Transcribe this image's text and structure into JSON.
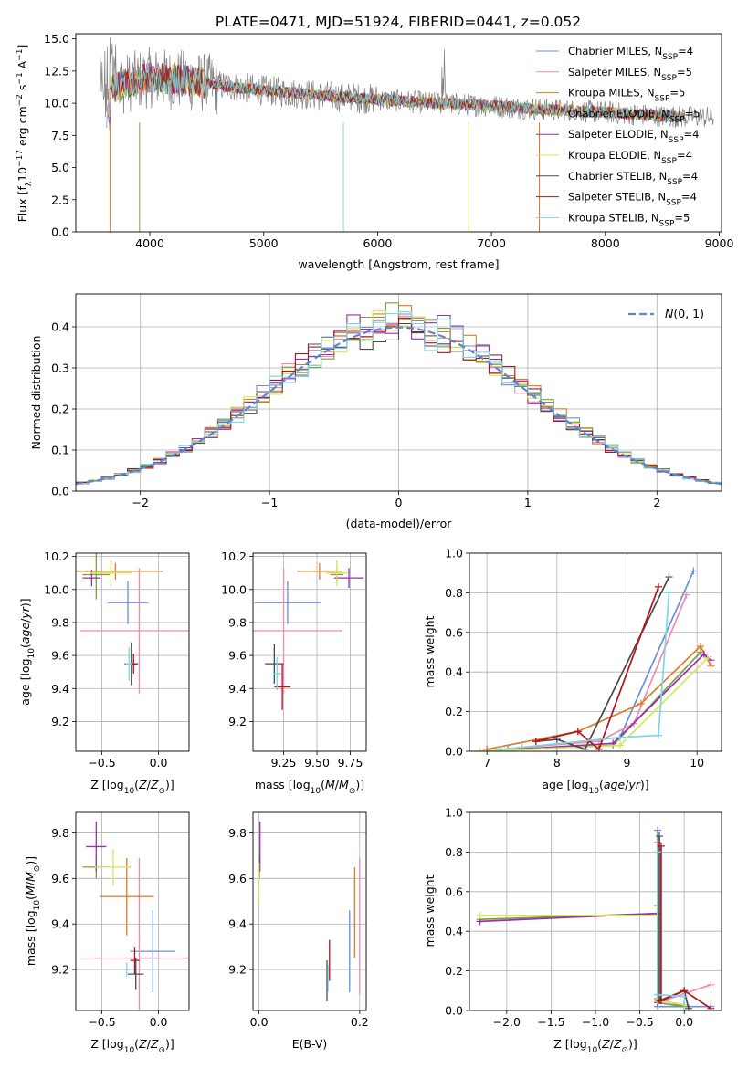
{
  "figure": {
    "title": "PLATE=0471, MJD=51924, FIBERID=0441, z=0.052"
  },
  "colors": {
    "Chabrier MILES": "#6a8fd8",
    "Salpeter MILES": "#f08cac",
    "Kroupa MILES": "#e07b28",
    "Chabrier ELODIE": "#7aa03c",
    "Salpeter ELODIE": "#9a2fb0",
    "Kroupa ELODIE": "#d4e65a",
    "Chabrier STELIB": "#4a4a4a",
    "Salpeter STELIB": "#b0141e",
    "Kroupa STELIB": "#7dd6df",
    "data": "#808080"
  },
  "chart_data": [
    {
      "id": "spectrum",
      "type": "line",
      "title": "PLATE=0471, MJD=51924, FIBERID=0441, z=0.052",
      "xlabel": "wavelength [Angstrom, rest frame]",
      "ylabel": "Flux [f_λ 10^-17 erg cm^-2 s^-1 A^-1]",
      "xlim": [
        3350,
        9020
      ],
      "ylim": [
        0,
        15.4
      ],
      "xticks": [
        4000,
        5000,
        6000,
        7000,
        8000,
        9000
      ],
      "yticks": [
        0.0,
        2.5,
        5.0,
        7.5,
        10.0,
        12.5,
        15.0
      ],
      "legend_position": "top-right",
      "series": [
        {
          "name": "Chabrier MILES",
          "label": "Chabrier MILES, N_SSP=4"
        },
        {
          "name": "Salpeter MILES",
          "label": "Salpeter MILES, N_SSP=5"
        },
        {
          "name": "Kroupa MILES",
          "label": "Kroupa MILES, N_SSP=5"
        },
        {
          "name": "Chabrier ELODIE",
          "label": "Chabrier ELODIE, N_SSP=5"
        },
        {
          "name": "Salpeter ELODIE",
          "label": "Salpeter ELODIE, N_SSP=4"
        },
        {
          "name": "Kroupa ELODIE",
          "label": "Kroupa ELODIE, N_SSP=4"
        },
        {
          "name": "Chabrier STELIB",
          "label": "Chabrier STELIB, N_SSP=4"
        },
        {
          "name": "Salpeter STELIB",
          "label": "Salpeter STELIB, N_SSP=4"
        },
        {
          "name": "Kroupa STELIB",
          "label": "Kroupa STELIB, N_SSP=5"
        }
      ],
      "continuum": {
        "x": [
          3650,
          3800,
          4000,
          4300,
          4600,
          5000,
          5500,
          6000,
          6500,
          7000,
          7500,
          8000,
          8500,
          8900
        ],
        "y": [
          11.0,
          11.6,
          12.0,
          11.8,
          11.4,
          11.0,
          10.6,
          10.3,
          10.0,
          9.8,
          9.5,
          9.3,
          9.0,
          8.9
        ]
      }
    },
    {
      "id": "residuals",
      "type": "line",
      "xlabel": "(data-model)/error",
      "ylabel": "Normed distribution",
      "xlim": [
        -2.5,
        2.5
      ],
      "ylim": [
        0,
        0.48
      ],
      "xticks": [
        -2,
        -1,
        0,
        1,
        2
      ],
      "yticks": [
        0.0,
        0.1,
        0.2,
        0.3,
        0.4
      ],
      "legend_position": "top-right",
      "legend_label": "N(0,1)",
      "bin_width": 0.1,
      "bin_start": -2.5
    },
    {
      "id": "age-vs-Z",
      "type": "scatter",
      "xlabel": "Z [log10(Z/Z_sun)]",
      "ylabel": "age [log10(age/yr)]",
      "xlim": [
        -0.73,
        0.27
      ],
      "ylim": [
        9.02,
        10.22
      ],
      "xticks": [
        -0.5,
        0.0
      ],
      "yticks": [
        9.2,
        9.4,
        9.6,
        9.8,
        10.0,
        10.2
      ],
      "points": [
        {
          "name": "Chabrier MILES",
          "x": -0.27,
          "xerr": 0.18,
          "y": 9.92,
          "yerr": 0.13
        },
        {
          "name": "Salpeter MILES",
          "x": -0.17,
          "xerr": 0.52,
          "y": 9.75,
          "yerr": 0.38
        },
        {
          "name": "Kroupa MILES",
          "x": -0.38,
          "xerr": 0.42,
          "y": 10.11,
          "yerr": 0.05
        },
        {
          "name": "Chabrier ELODIE",
          "x": -0.55,
          "xerr": 0.12,
          "y": 10.09,
          "yerr": 0.15
        },
        {
          "name": "Salpeter ELODIE",
          "x": -0.59,
          "xerr": 0.08,
          "y": 10.07,
          "yerr": 0.05
        },
        {
          "name": "Kroupa ELODIE",
          "x": -0.42,
          "xerr": 0.18,
          "y": 10.1,
          "yerr": 0.08
        },
        {
          "name": "Chabrier STELIB",
          "x": -0.24,
          "xerr": 0.06,
          "y": 9.55,
          "yerr": 0.13
        },
        {
          "name": "Salpeter STELIB",
          "x": -0.22,
          "xerr": 0.03,
          "y": 9.55,
          "yerr": 0.06
        },
        {
          "name": "Kroupa STELIB",
          "x": -0.26,
          "xerr": 0.03,
          "y": 9.55,
          "yerr": 0.1
        }
      ]
    },
    {
      "id": "age-vs-mass",
      "type": "scatter",
      "xlabel": "mass [log10(M/M_sun)]",
      "xlim": [
        9.02,
        9.87
      ],
      "ylim": [
        9.02,
        10.22
      ],
      "xticks": [
        9.25,
        9.5,
        9.75
      ],
      "yticks": [
        9.2,
        9.4,
        9.6,
        9.8,
        10.0,
        10.2
      ],
      "points": [
        {
          "name": "Chabrier MILES",
          "x": 9.28,
          "xerr": 0.25,
          "y": 9.92,
          "yerr": 0.13
        },
        {
          "name": "Salpeter MILES",
          "x": 9.25,
          "xerr": 0.44,
          "y": 9.75,
          "yerr": 0.38
        },
        {
          "name": "Kroupa MILES",
          "x": 9.52,
          "xerr": 0.17,
          "y": 10.11,
          "yerr": 0.05
        },
        {
          "name": "Chabrier ELODIE",
          "x": 9.65,
          "xerr": 0.05,
          "y": 10.09,
          "yerr": 0.04
        },
        {
          "name": "Salpeter ELODIE",
          "x": 9.74,
          "xerr": 0.11,
          "y": 10.07,
          "yerr": 0.06
        },
        {
          "name": "Kroupa ELODIE",
          "x": 9.65,
          "xerr": 0.08,
          "y": 10.1,
          "yerr": 0.08
        },
        {
          "name": "Chabrier STELIB",
          "x": 9.18,
          "xerr": 0.07,
          "y": 9.55,
          "yerr": 0.12
        },
        {
          "name": "Salpeter STELIB",
          "x": 9.24,
          "xerr": 0.06,
          "y": 9.41,
          "yerr": 0.14
        },
        {
          "name": "Kroupa STELIB",
          "x": 9.2,
          "xerr": 0.03,
          "y": 9.49,
          "yerr": 0.1
        }
      ]
    },
    {
      "id": "massweight-vs-age",
      "type": "line",
      "xlabel": "age [log10(age/yr)]",
      "ylabel": "mass weight",
      "xlim": [
        6.75,
        10.35
      ],
      "ylim": [
        0,
        1.0
      ],
      "xticks": [
        7,
        8,
        9,
        10
      ],
      "yticks": [
        0.0,
        0.2,
        0.4,
        0.6,
        0.8,
        1.0
      ],
      "series": [
        {
          "name": "Chabrier MILES",
          "x": [
            7.3,
            8.9,
            9.95
          ],
          "y": [
            0.01,
            0.07,
            0.91
          ]
        },
        {
          "name": "Salpeter MILES",
          "x": [
            7.5,
            8.6,
            9.1,
            9.85
          ],
          "y": [
            0.02,
            0.05,
            0.14,
            0.79
          ]
        },
        {
          "name": "Kroupa MILES",
          "x": [
            7.0,
            8.3,
            9.2,
            10.05,
            10.2
          ],
          "y": [
            0.01,
            0.1,
            0.24,
            0.53,
            0.43
          ]
        },
        {
          "name": "Chabrier ELODIE",
          "x": [
            6.9,
            8.8,
            10.05
          ],
          "y": [
            0.0,
            0.03,
            0.5
          ]
        },
        {
          "name": "Salpeter ELODIE",
          "x": [
            7.0,
            8.8,
            10.1,
            10.2
          ],
          "y": [
            0.0,
            0.04,
            0.49,
            0.46
          ]
        },
        {
          "name": "Kroupa ELODIE",
          "x": [
            6.9,
            8.9,
            10.15
          ],
          "y": [
            0.0,
            0.03,
            0.47
          ]
        },
        {
          "name": "Chabrier STELIB",
          "x": [
            7.7,
            8.0,
            8.4,
            9.6
          ],
          "y": [
            0.05,
            0.06,
            0.01,
            0.88
          ]
        },
        {
          "name": "Salpeter STELIB",
          "x": [
            7.7,
            8.3,
            8.6,
            9.45
          ],
          "y": [
            0.05,
            0.1,
            0.01,
            0.83
          ]
        },
        {
          "name": "Kroupa STELIB",
          "x": [
            7.2,
            8.9,
            9.45,
            9.6
          ],
          "y": [
            0.01,
            0.07,
            0.08,
            0.8
          ]
        }
      ]
    },
    {
      "id": "mass-vs-Z",
      "type": "scatter",
      "xlabel": "Z [log10(Z/Z_sun)]",
      "ylabel": "mass [log10(M/M_sun)]",
      "xlim": [
        -0.73,
        0.27
      ],
      "ylim": [
        9.02,
        9.89
      ],
      "xticks": [
        -0.5,
        0.0
      ],
      "yticks": [
        9.2,
        9.4,
        9.6,
        9.8
      ],
      "points": [
        {
          "name": "Chabrier MILES",
          "x": -0.05,
          "xerr": 0.2,
          "y": 9.28,
          "yerr": 0.18
        },
        {
          "name": "Salpeter MILES",
          "x": -0.17,
          "xerr": 0.52,
          "y": 9.25,
          "yerr": 0.44
        },
        {
          "name": "Kroupa MILES",
          "x": -0.28,
          "xerr": 0.24,
          "y": 9.52,
          "yerr": 0.17
        },
        {
          "name": "Chabrier ELODIE",
          "x": -0.55,
          "xerr": 0.12,
          "y": 9.65,
          "yerr": 0.05
        },
        {
          "name": "Salpeter ELODIE",
          "x": -0.55,
          "xerr": 0.09,
          "y": 9.74,
          "yerr": 0.11
        },
        {
          "name": "Kroupa ELODIE",
          "x": -0.4,
          "xerr": 0.16,
          "y": 9.65,
          "yerr": 0.08
        },
        {
          "name": "Chabrier STELIB",
          "x": -0.2,
          "xerr": 0.07,
          "y": 9.18,
          "yerr": 0.07
        },
        {
          "name": "Salpeter STELIB",
          "x": -0.21,
          "xerr": 0.04,
          "y": 9.24,
          "yerr": 0.06
        },
        {
          "name": "Kroupa STELIB",
          "x": -0.28,
          "xerr": 0.02,
          "y": 9.2,
          "yerr": 0.03
        }
      ]
    },
    {
      "id": "mass-vs-EBV",
      "type": "scatter",
      "xlabel": "E(B-V)",
      "xlim": [
        -0.012,
        0.213
      ],
      "ylim": [
        9.02,
        9.89
      ],
      "xticks": [
        0.0,
        0.2
      ],
      "yticks": [
        9.2,
        9.4,
        9.6,
        9.8
      ],
      "points": [
        {
          "name": "Chabrier MILES",
          "x": 0.18,
          "y": 9.28,
          "yerr": 0.18
        },
        {
          "name": "Salpeter MILES",
          "x": 0.2,
          "y": 9.39,
          "yerr": 0.3
        },
        {
          "name": "Kroupa MILES",
          "x": 0.19,
          "y": 9.45,
          "yerr": 0.2
        },
        {
          "name": "Chabrier ELODIE",
          "x": 0.001,
          "y": 9.65,
          "yerr": 0.05
        },
        {
          "name": "Salpeter ELODIE",
          "x": 0.002,
          "y": 9.74,
          "yerr": 0.11
        },
        {
          "name": "Kroupa ELODIE",
          "x": 0.0,
          "y": 9.58,
          "yerr": 0.09
        },
        {
          "name": "Chabrier STELIB",
          "x": 0.135,
          "y": 9.15,
          "yerr": 0.09
        },
        {
          "name": "Salpeter STELIB",
          "x": 0.14,
          "y": 9.24,
          "yerr": 0.09
        },
        {
          "name": "Kroupa STELIB",
          "x": 0.137,
          "y": 9.16,
          "yerr": 0.06
        }
      ]
    },
    {
      "id": "massweight-vs-Z",
      "type": "line",
      "xlabel": "Z [log10(Z/Z_sun)]",
      "ylabel": "mass weight",
      "xlim": [
        -2.42,
        0.42
      ],
      "ylim": [
        0,
        1.0
      ],
      "xticks": [
        -2.0,
        -1.5,
        -1.0,
        -0.5,
        0.0
      ],
      "yticks": [
        0.0,
        0.2,
        0.4,
        0.6,
        0.8,
        1.0
      ],
      "series": [
        {
          "name": "Chabrier MILES",
          "x": [
            -0.3,
            -0.3,
            0.3
          ],
          "y": [
            0.91,
            0.02,
            0.02
          ]
        },
        {
          "name": "Salpeter MILES",
          "x": [
            -0.3,
            -0.3,
            0.3
          ],
          "y": [
            0.85,
            0.04,
            0.13
          ]
        },
        {
          "name": "Kroupa MILES",
          "x": [
            -0.3,
            -0.3,
            0.0
          ],
          "y": [
            0.53,
            0.06,
            0.02
          ]
        },
        {
          "name": "Chabrier ELODIE",
          "x": [
            -2.3,
            -0.3,
            -0.3,
            0.0
          ],
          "y": [
            0.46,
            0.49,
            0.04,
            0.02
          ]
        },
        {
          "name": "Salpeter ELODIE",
          "x": [
            -2.3,
            -0.3,
            -0.3
          ],
          "y": [
            0.45,
            0.49,
            0.04
          ]
        },
        {
          "name": "Kroupa ELODIE",
          "x": [
            -2.3,
            -0.3,
            -0.3,
            0.0
          ],
          "y": [
            0.48,
            0.48,
            0.05,
            0.03
          ]
        },
        {
          "name": "Chabrier STELIB",
          "x": [
            -0.28,
            -0.28,
            0.0,
            0.05
          ],
          "y": [
            0.88,
            0.05,
            0.1,
            0.01
          ]
        },
        {
          "name": "Salpeter STELIB",
          "x": [
            -0.26,
            -0.26,
            0.0,
            0.3
          ],
          "y": [
            0.83,
            0.05,
            0.1,
            0.01
          ]
        },
        {
          "name": "Kroupa STELIB",
          "x": [
            -0.3,
            -0.3,
            0.0,
            0.0
          ],
          "y": [
            0.8,
            0.08,
            0.07,
            0.0
          ]
        }
      ]
    }
  ]
}
